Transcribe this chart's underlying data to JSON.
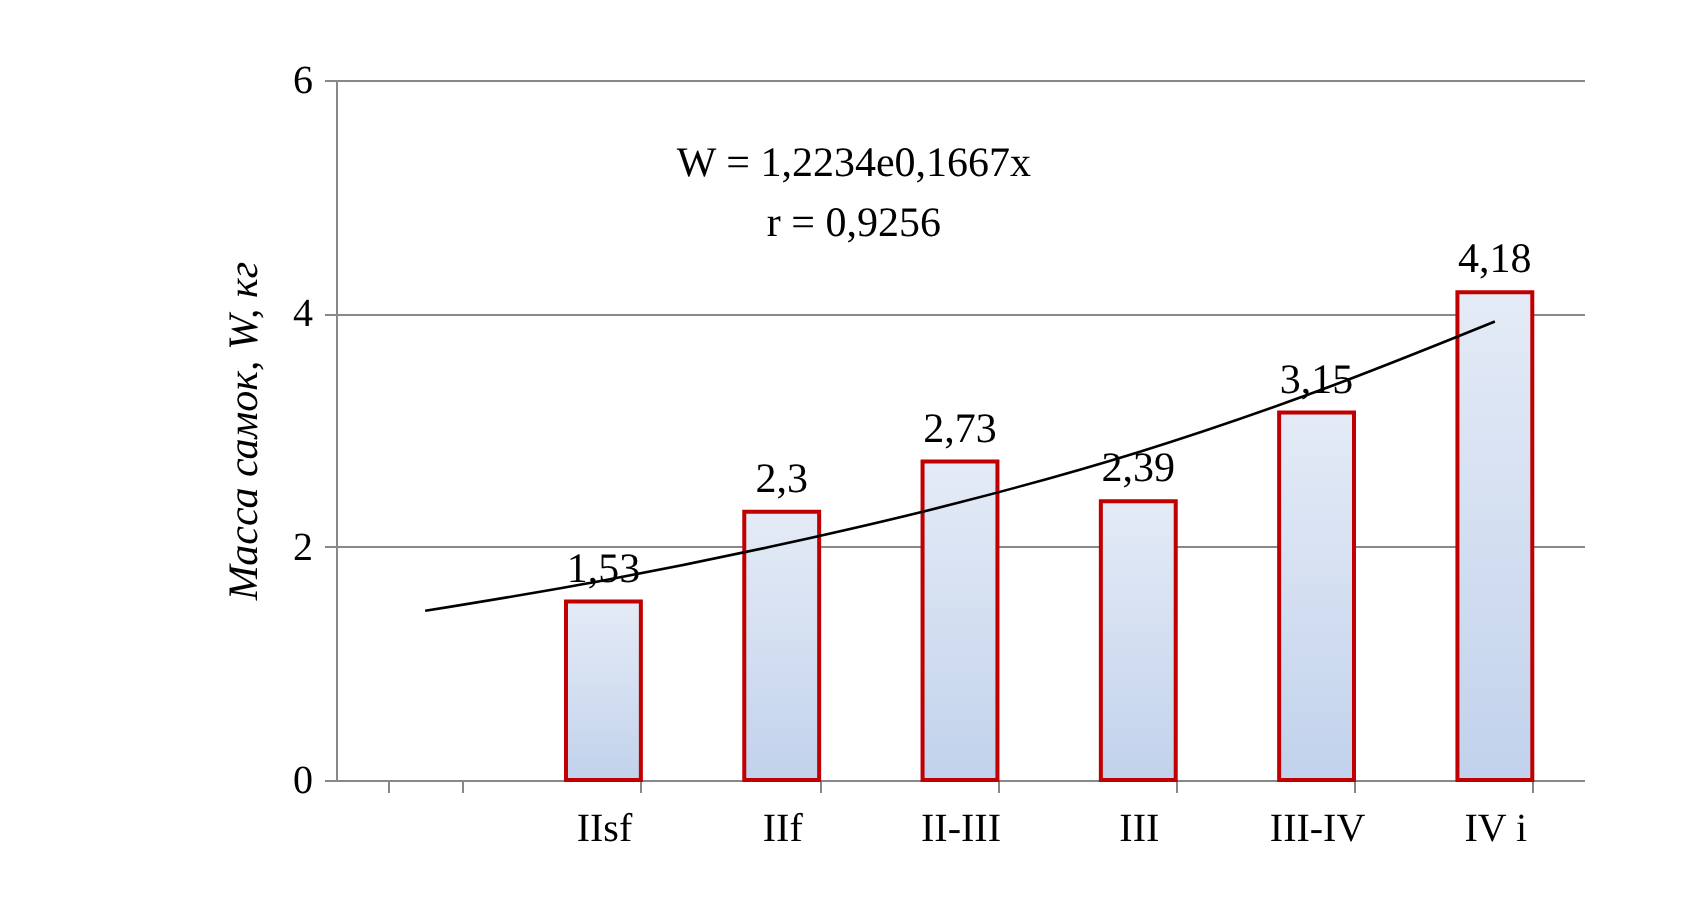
{
  "chart_data": {
    "type": "bar",
    "ylabel": "Масса самок, W, кг",
    "categories": [
      null,
      "IIsf",
      "IIf",
      "II-III",
      "III",
      "III-IV",
      "IV i"
    ],
    "series": [
      {
        "color": "#c00000",
        "values": [
          null,
          1.53,
          2.3,
          2.73,
          2.39,
          3.15,
          4.18
        ],
        "value_labels": [
          null,
          "1,53",
          "2,3",
          "2,73",
          "2,39",
          "3,15",
          "4,18"
        ]
      },
      {
        "type": "line",
        "color": "#000000",
        "values": [
          1.45,
          1.71,
          2.02,
          2.38,
          2.81,
          3.33,
          3.93
        ]
      }
    ],
    "ylim": [
      0,
      6
    ],
    "yticks": [
      0,
      2,
      4,
      6
    ],
    "grid": "y",
    "marker": "none",
    "annotations": [
      "W = 1,2234e0,1667x",
      "r = 0,9256"
    ]
  }
}
